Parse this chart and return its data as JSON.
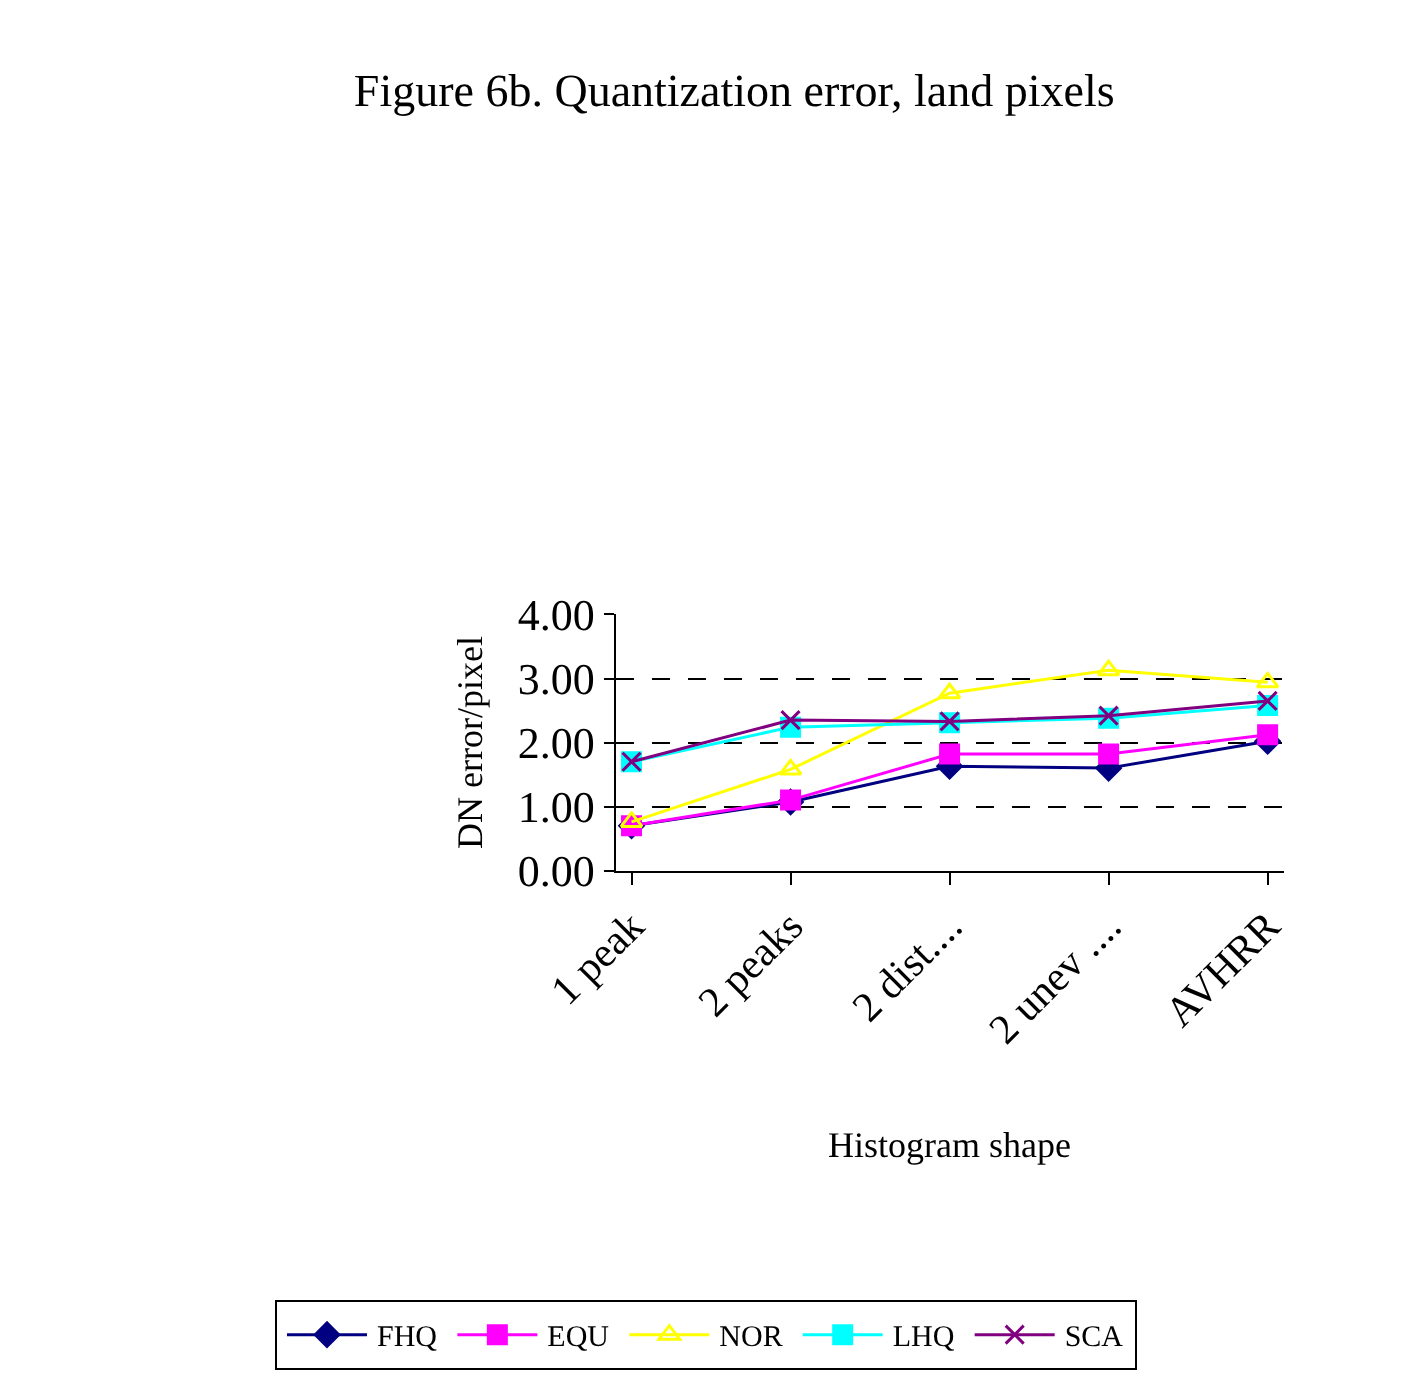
{
  "chart_data": {
    "type": "line",
    "title": "Figure 6b. Quantization error, land pixels",
    "xlabel": "Histogram shape",
    "ylabel": "DN error/pixel",
    "categories": [
      "1 peak",
      "2 peaks",
      "2 dist....",
      "2 unev ....",
      "AVHRR"
    ],
    "series": [
      {
        "name": "FHQ",
        "color": "#000080",
        "marker": "diamond",
        "values": [
          0.7,
          1.07,
          1.63,
          1.6,
          2.02
        ]
      },
      {
        "name": "EQU",
        "color": "#ff00ff",
        "marker": "square",
        "values": [
          0.7,
          1.1,
          1.82,
          1.82,
          2.12
        ]
      },
      {
        "name": "NOR",
        "color": "#ffff00",
        "marker": "triangle",
        "values": [
          0.76,
          1.58,
          2.77,
          3.13,
          2.94
        ]
      },
      {
        "name": "LHQ",
        "color": "#00ffff",
        "marker": "square",
        "values": [
          1.7,
          2.24,
          2.31,
          2.38,
          2.58
        ]
      },
      {
        "name": "SCA",
        "color": "#800080",
        "marker": "cross",
        "values": [
          1.7,
          2.35,
          2.33,
          2.42,
          2.65
        ]
      }
    ],
    "ylim": [
      0,
      4
    ],
    "yticks": [
      {
        "value": 0,
        "label": "0.00"
      },
      {
        "value": 1,
        "label": "1.00"
      },
      {
        "value": 2,
        "label": "2.00"
      },
      {
        "value": 3,
        "label": "3.00"
      },
      {
        "value": 4,
        "label": "4.00"
      }
    ],
    "grid": "y",
    "legend": "bottom"
  }
}
